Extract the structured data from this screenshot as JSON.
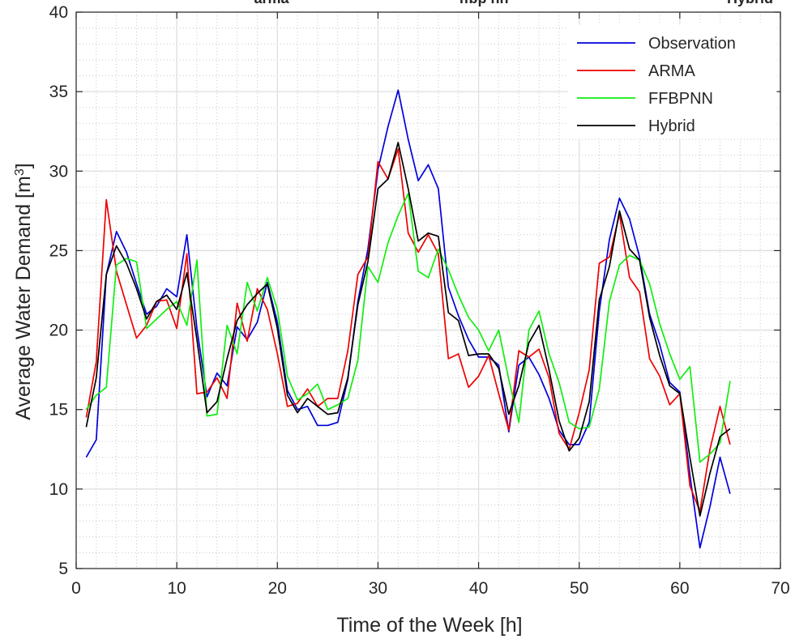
{
  "chart_data": {
    "type": "line",
    "top_labels": [
      "arma",
      "ffbp nn",
      "Hybrid"
    ],
    "xlabel": "Time of the Week [h]",
    "ylabel_main": "Average Water Demand [m",
    "ylabel_sup": "3",
    "ylabel_end": "]",
    "xlim": [
      0,
      70
    ],
    "ylim": [
      5,
      40
    ],
    "xticks": [
      0,
      10,
      20,
      30,
      40,
      50,
      60,
      70
    ],
    "yticks": [
      5,
      10,
      15,
      20,
      25,
      30,
      35,
      40
    ],
    "grid": true,
    "legend_position": "top-right",
    "x": [
      1,
      2,
      3,
      4,
      5,
      6,
      7,
      8,
      9,
      10,
      11,
      12,
      13,
      14,
      15,
      16,
      17,
      18,
      19,
      20,
      21,
      22,
      23,
      24,
      25,
      26,
      27,
      28,
      29,
      30,
      31,
      32,
      33,
      34,
      35,
      36,
      37,
      38,
      39,
      40,
      41,
      42,
      43,
      44,
      45,
      46,
      47,
      48,
      49,
      50,
      51,
      52,
      53,
      54,
      55,
      56,
      57,
      58,
      59,
      60,
      61,
      62,
      63,
      64,
      65
    ],
    "series": [
      {
        "name": "Observation",
        "color": "#0000dd",
        "values": [
          12.0,
          13.1,
          23.5,
          26.2,
          24.9,
          22.9,
          21.0,
          21.5,
          22.6,
          22.1,
          26.0,
          20.1,
          15.8,
          17.3,
          16.5,
          20.2,
          19.4,
          20.5,
          23.0,
          20.5,
          16.2,
          15.0,
          15.2,
          14.0,
          14.0,
          14.2,
          16.9,
          21.8,
          25.1,
          30.1,
          32.8,
          35.1,
          32.0,
          29.4,
          30.4,
          28.9,
          22.7,
          20.9,
          19.4,
          18.3,
          18.3,
          17.8,
          13.6,
          17.8,
          18.3,
          17.2,
          15.7,
          13.7,
          12.8,
          12.8,
          14.2,
          21.2,
          25.7,
          28.3,
          27.0,
          24.6,
          21.0,
          19.1,
          16.7,
          16.1,
          10.9,
          6.3,
          8.9,
          12.0,
          9.7
        ]
      },
      {
        "name": "ARMA",
        "color": "#ee0000",
        "values": [
          14.5,
          18.0,
          28.2,
          23.7,
          21.6,
          19.5,
          20.3,
          21.8,
          21.9,
          20.1,
          24.8,
          16.0,
          16.1,
          17.0,
          15.7,
          21.7,
          19.3,
          22.6,
          21.3,
          18.5,
          15.2,
          15.4,
          16.3,
          15.2,
          15.7,
          15.7,
          18.7,
          23.5,
          24.6,
          30.6,
          29.5,
          31.4,
          26.1,
          24.9,
          26.0,
          24.8,
          18.2,
          18.5,
          16.4,
          17.1,
          18.4,
          16.0,
          13.7,
          18.7,
          18.3,
          18.8,
          17.0,
          13.5,
          12.5,
          14.8,
          17.5,
          24.2,
          24.6,
          27.3,
          23.3,
          22.4,
          18.2,
          17.1,
          15.3,
          16.0,
          10.2,
          8.6,
          12.5,
          15.2,
          12.8
        ]
      },
      {
        "name": "FFBPNN",
        "color": "#11ee11",
        "values": [
          15.0,
          15.9,
          16.4,
          24.1,
          24.5,
          24.3,
          20.1,
          20.7,
          21.3,
          21.8,
          20.3,
          24.4,
          14.6,
          14.7,
          20.3,
          18.5,
          23.0,
          21.2,
          23.3,
          21.3,
          17.1,
          15.6,
          16.0,
          16.6,
          15.0,
          15.3,
          15.7,
          18.1,
          24.0,
          23.0,
          25.5,
          27.2,
          28.6,
          23.7,
          23.3,
          25.1,
          23.8,
          22.2,
          20.8,
          20.0,
          18.7,
          20.0,
          16.9,
          14.2,
          20.0,
          21.2,
          18.5,
          16.7,
          14.2,
          13.8,
          13.9,
          16.3,
          21.8,
          24.1,
          24.7,
          24.4,
          22.9,
          20.4,
          18.5,
          16.9,
          17.7,
          11.7,
          12.2,
          12.9,
          16.8
        ]
      },
      {
        "name": "Hybrid",
        "color": "#000000",
        "values": [
          13.9,
          17.0,
          23.5,
          25.3,
          24.2,
          22.6,
          20.7,
          21.8,
          22.2,
          21.3,
          23.6,
          19.4,
          14.8,
          15.5,
          18.2,
          20.6,
          21.6,
          22.3,
          22.9,
          20.1,
          15.9,
          14.8,
          15.7,
          15.2,
          14.7,
          14.8,
          17.0,
          21.6,
          24.3,
          28.9,
          29.5,
          31.8,
          28.9,
          25.6,
          26.1,
          25.9,
          21.1,
          20.6,
          18.4,
          18.5,
          18.5,
          17.6,
          14.7,
          16.5,
          19.2,
          20.3,
          17.5,
          14.3,
          12.4,
          13.2,
          15.5,
          21.9,
          24.0,
          27.5,
          25.1,
          24.4,
          20.8,
          18.4,
          16.5,
          16.0,
          12.0,
          8.3,
          11.0,
          13.3,
          13.8
        ]
      }
    ]
  }
}
